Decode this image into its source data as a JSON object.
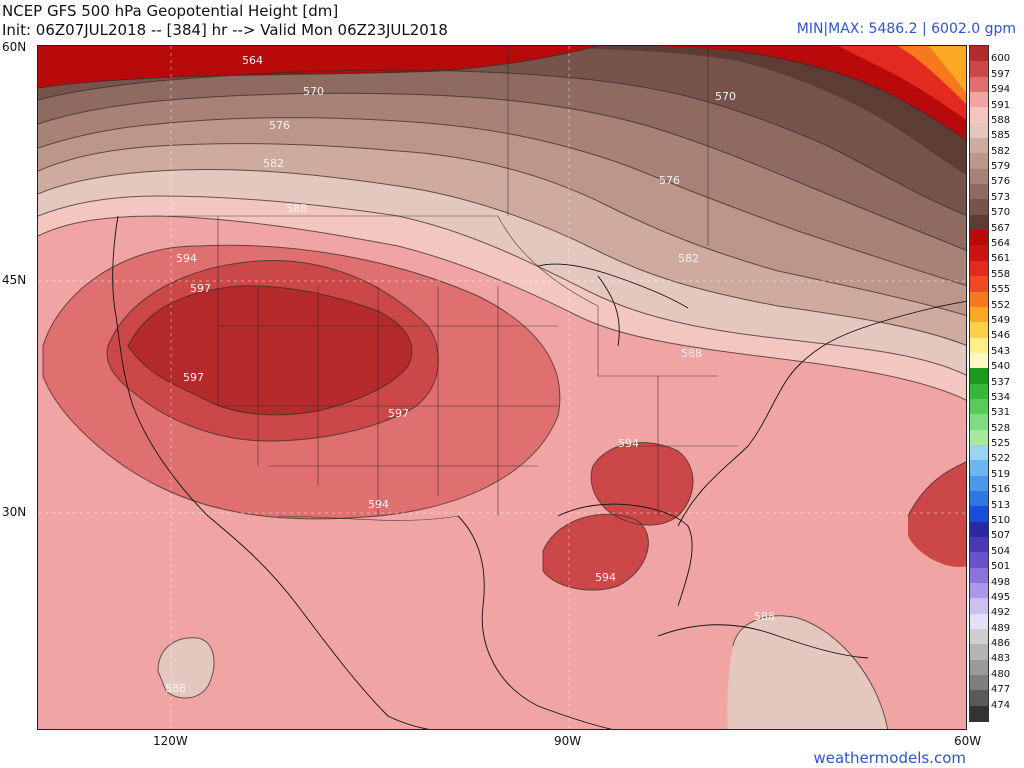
{
  "header": {
    "title_line1": "NCEP GFS 500 hPa Geopotential Height [dm]",
    "title_line2": "Init: 06Z07JUL2018 -- [384] hr --> Valid Mon 06Z23JUL2018",
    "minmax": "MIN|MAX: 5486.2 | 6002.0 gpm"
  },
  "watermark": "weathermodels.com",
  "axes": {
    "lat_labels": [
      "60N",
      "45N",
      "30N"
    ],
    "lon_labels": [
      "120W",
      "90W",
      "60W"
    ]
  },
  "contour_labels": [
    "564",
    "570",
    "576",
    "582",
    "588",
    "594",
    "597",
    "597",
    "597",
    "570",
    "576",
    "582",
    "588",
    "594",
    "594",
    "594",
    "588",
    "588"
  ],
  "colorbar": {
    "levels": [
      "600",
      "597",
      "594",
      "591",
      "588",
      "585",
      "582",
      "579",
      "576",
      "573",
      "570",
      "567",
      "564",
      "561",
      "558",
      "555",
      "552",
      "549",
      "546",
      "543",
      "540",
      "537",
      "534",
      "531",
      "528",
      "525",
      "522",
      "519",
      "516",
      "513",
      "510",
      "507",
      "504",
      "501",
      "498",
      "495",
      "492",
      "489",
      "486",
      "483",
      "480",
      "477",
      "474"
    ],
    "colors": [
      "#b52a2a",
      "#cc4848",
      "#e07070",
      "#f0a4a4",
      "#f4c6c0",
      "#e4c8bf",
      "#cfaa9e",
      "#bd968a",
      "#a88276",
      "#8e6a60",
      "#76544c",
      "#5c3c35",
      "#b80a0a",
      "#cc1212",
      "#e22a20",
      "#f04a22",
      "#f8781e",
      "#fba822",
      "#fcd048",
      "#fdee88",
      "#fef8c4",
      "#1a9a1a",
      "#38b838",
      "#58cc58",
      "#80dc80",
      "#a8e8a0",
      "#9ad4f4",
      "#6ab6ee",
      "#4a98e8",
      "#2c78e0",
      "#1a4ed8",
      "#2a2aa0",
      "#4a38b8",
      "#6a52cc",
      "#8a74dc",
      "#ac98e8",
      "#ccc0f0",
      "#e4e0f6",
      "#cfcfcf",
      "#b4b4b4",
      "#9a9a9a",
      "#7e7e7e",
      "#5a5a5a",
      "#333333"
    ]
  }
}
